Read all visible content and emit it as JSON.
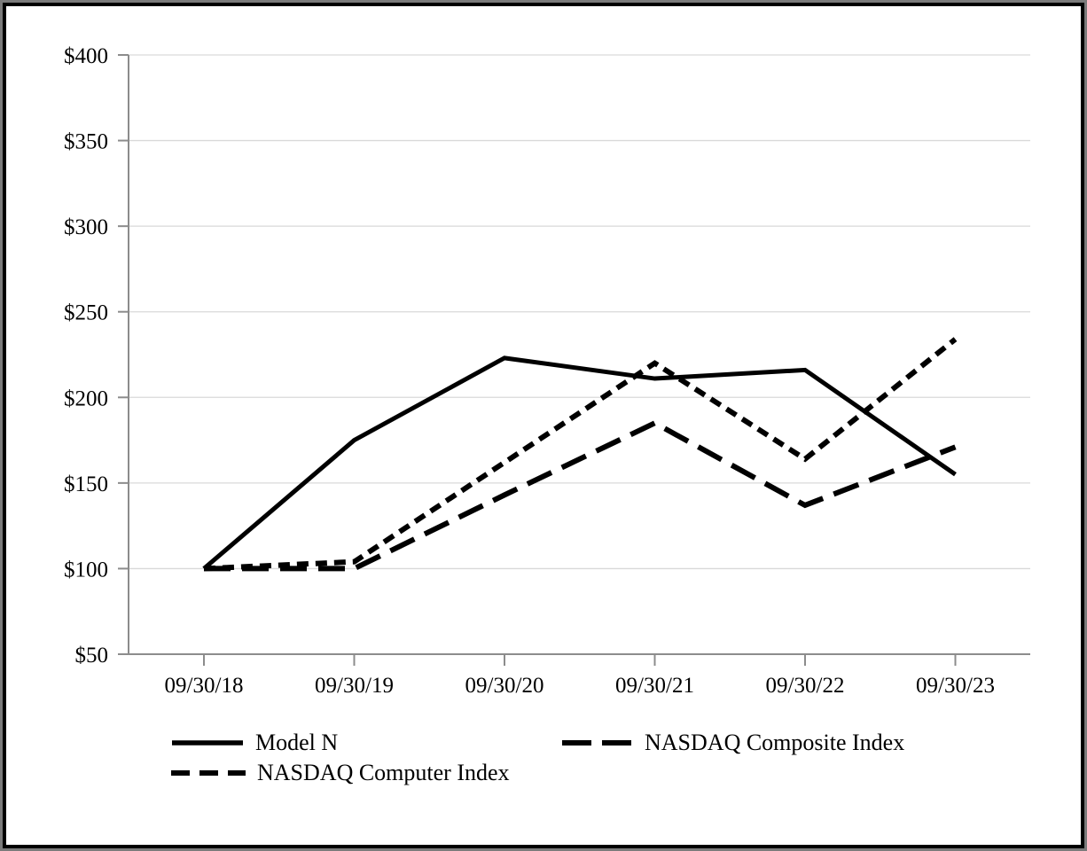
{
  "chart_data": {
    "type": "line",
    "title": "",
    "xlabel": "",
    "ylabel": "",
    "grid": true,
    "legend_position": "bottom",
    "x_tick_labels": [
      "09/30/18",
      "09/30/19",
      "09/30/20",
      "09/30/21",
      "09/30/22",
      "09/30/23"
    ],
    "y_axis": {
      "min": 50,
      "max": 400,
      "tick_step": 50,
      "tick_values": [
        50,
        100,
        150,
        200,
        250,
        300,
        350,
        400
      ],
      "tick_labels": [
        "$50",
        "$100",
        "$150",
        "$200",
        "$250",
        "$300",
        "$350",
        "$400"
      ]
    },
    "series": [
      {
        "name": "Model N",
        "line_style": "solid",
        "color": "#000000",
        "values": [
          100,
          175,
          223,
          211,
          216,
          155
        ]
      },
      {
        "name": "NASDAQ Composite Index",
        "line_style": "long-dash",
        "color": "#000000",
        "values": [
          100,
          100,
          143,
          185,
          137,
          171
        ]
      },
      {
        "name": "NASDAQ Computer Index",
        "line_style": "short-dash",
        "color": "#000000",
        "values": [
          100,
          104,
          162,
          220,
          164,
          234
        ]
      }
    ],
    "legend": [
      {
        "label": "Model N",
        "line_style": "solid"
      },
      {
        "label": "NASDAQ Composite Index",
        "line_style": "long-dash"
      },
      {
        "label": "NASDAQ Computer Index",
        "line_style": "short-dash"
      }
    ],
    "colors": {
      "series": "#000000",
      "gridline": "#d9d9d9",
      "axis": "#8c8c8c",
      "text": "#000000",
      "background": "#ffffff",
      "frame_outer": "#7b7b7b",
      "frame_inner": "#000000"
    }
  }
}
